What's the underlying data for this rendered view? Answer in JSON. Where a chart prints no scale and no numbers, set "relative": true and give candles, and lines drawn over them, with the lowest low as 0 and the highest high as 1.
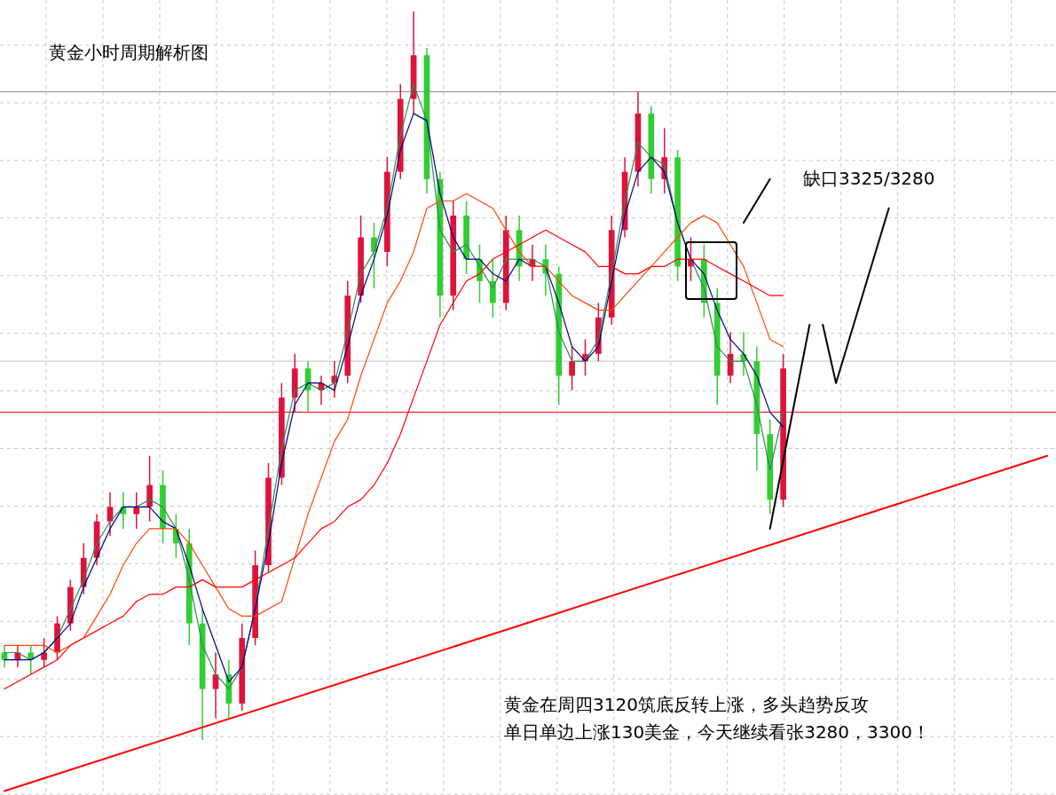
{
  "chart_data": {
    "type": "candlestick",
    "title": "黄金小时周期解析图",
    "relative": true,
    "grid": true,
    "categories": [
      null,
      null,
      null,
      null,
      null,
      null,
      null,
      null,
      null,
      null,
      null,
      null,
      null,
      null,
      null,
      null,
      null,
      null,
      null,
      null,
      null,
      null,
      null,
      null,
      null,
      null,
      null,
      null,
      null,
      null,
      null,
      null,
      null,
      null,
      null,
      null,
      null,
      null,
      null,
      null,
      null,
      null,
      null,
      null,
      null,
      null,
      null,
      null,
      null,
      null,
      null,
      null,
      null,
      null,
      null,
      null,
      null,
      null,
      null,
      null,
      null,
      null,
      null,
      null,
      null,
      null,
      null,
      null,
      null,
      null,
      null,
      null,
      null,
      null,
      null,
      null,
      null,
      null,
      null,
      null
    ],
    "ohlc": [
      [
        0.12,
        0.13,
        0.1,
        0.11
      ],
      [
        0.11,
        0.13,
        0.1,
        0.12
      ],
      [
        0.12,
        0.13,
        0.09,
        0.11
      ],
      [
        0.11,
        0.14,
        0.1,
        0.12
      ],
      [
        0.12,
        0.17,
        0.11,
        0.16
      ],
      [
        0.16,
        0.22,
        0.15,
        0.21
      ],
      [
        0.21,
        0.27,
        0.2,
        0.25
      ],
      [
        0.25,
        0.31,
        0.24,
        0.3
      ],
      [
        0.3,
        0.34,
        0.28,
        0.32
      ],
      [
        0.32,
        0.34,
        0.29,
        0.31
      ],
      [
        0.31,
        0.34,
        0.29,
        0.32
      ],
      [
        0.32,
        0.39,
        0.3,
        0.35
      ],
      [
        0.35,
        0.37,
        0.27,
        0.29
      ],
      [
        0.29,
        0.31,
        0.25,
        0.27
      ],
      [
        0.27,
        0.29,
        0.13,
        0.16
      ],
      [
        0.16,
        0.18,
        0.0,
        0.07
      ],
      [
        0.07,
        0.12,
        0.03,
        0.09
      ],
      [
        0.09,
        0.11,
        0.03,
        0.05
      ],
      [
        0.05,
        0.16,
        0.04,
        0.14
      ],
      [
        0.14,
        0.26,
        0.13,
        0.24
      ],
      [
        0.24,
        0.38,
        0.23,
        0.36
      ],
      [
        0.36,
        0.49,
        0.35,
        0.47
      ],
      [
        0.47,
        0.53,
        0.45,
        0.51
      ],
      [
        0.51,
        0.52,
        0.45,
        0.48
      ],
      [
        0.48,
        0.5,
        0.46,
        0.49
      ],
      [
        0.49,
        0.52,
        0.47,
        0.5
      ],
      [
        0.5,
        0.63,
        0.49,
        0.61
      ],
      [
        0.61,
        0.72,
        0.6,
        0.69
      ],
      [
        0.69,
        0.71,
        0.62,
        0.67
      ],
      [
        0.67,
        0.8,
        0.65,
        0.78
      ],
      [
        0.78,
        0.9,
        0.77,
        0.88
      ],
      [
        0.88,
        1.0,
        0.86,
        0.94
      ],
      [
        0.94,
        0.95,
        0.75,
        0.77
      ],
      [
        0.77,
        0.78,
        0.58,
        0.61
      ],
      [
        0.61,
        0.74,
        0.59,
        0.72
      ],
      [
        0.72,
        0.74,
        0.64,
        0.66
      ],
      [
        0.66,
        0.68,
        0.6,
        0.63
      ],
      [
        0.63,
        0.66,
        0.58,
        0.6
      ],
      [
        0.6,
        0.72,
        0.59,
        0.7
      ],
      [
        0.7,
        0.72,
        0.63,
        0.65
      ],
      [
        0.65,
        0.68,
        0.63,
        0.66
      ],
      [
        0.66,
        0.68,
        0.61,
        0.64
      ],
      [
        0.64,
        0.65,
        0.46,
        0.5
      ],
      [
        0.5,
        0.54,
        0.48,
        0.52
      ],
      [
        0.52,
        0.55,
        0.5,
        0.53
      ],
      [
        0.53,
        0.6,
        0.52,
        0.58
      ],
      [
        0.58,
        0.72,
        0.57,
        0.7
      ],
      [
        0.7,
        0.8,
        0.69,
        0.78
      ],
      [
        0.78,
        0.89,
        0.76,
        0.86
      ],
      [
        0.86,
        0.87,
        0.75,
        0.77
      ],
      [
        0.77,
        0.84,
        0.75,
        0.8
      ],
      [
        0.8,
        0.81,
        0.63,
        0.65
      ],
      [
        0.65,
        0.69,
        0.63,
        0.66
      ],
      [
        0.66,
        0.68,
        0.58,
        0.6
      ],
      [
        0.6,
        0.62,
        0.46,
        0.5
      ],
      [
        0.5,
        0.56,
        0.49,
        0.53
      ],
      [
        0.53,
        0.56,
        0.5,
        0.52
      ],
      [
        0.52,
        0.54,
        0.37,
        0.42
      ],
      [
        0.42,
        0.44,
        0.31,
        0.33
      ],
      [
        0.33,
        0.53,
        0.32,
        0.51
      ],
      null,
      null,
      null,
      null,
      null,
      null,
      null,
      null,
      null,
      null,
      null,
      null,
      null,
      null,
      null,
      null,
      null,
      null,
      null,
      null
    ],
    "colors": [
      "#32cd32",
      "#dc143c",
      "#32cd32",
      "#dc143c",
      "#dc143c",
      "#dc143c",
      "#dc143c",
      "#dc143c",
      "#dc143c",
      "#32cd32",
      "#dc143c",
      "#dc143c",
      "#32cd32",
      "#32cd32",
      "#32cd32",
      "#32cd32",
      "#dc143c",
      "#32cd32",
      "#dc143c",
      "#dc143c",
      "#dc143c",
      "#dc143c",
      "#dc143c",
      "#32cd32",
      "#dc143c",
      "#dc143c",
      "#dc143c",
      "#dc143c",
      "#32cd32",
      "#dc143c",
      "#dc143c",
      "#dc143c",
      "#32cd32",
      "#32cd32",
      "#dc143c",
      "#32cd32",
      "#32cd32",
      "#32cd32",
      "#dc143c",
      "#32cd32",
      "#dc143c",
      "#32cd32",
      "#32cd32",
      "#dc143c",
      "#dc143c",
      "#dc143c",
      "#dc143c",
      "#dc143c",
      "#dc143c",
      "#32cd32",
      "#dc143c",
      "#32cd32",
      "#dc143c",
      "#32cd32",
      "#32cd32",
      "#dc143c",
      "#32cd32",
      "#32cd32",
      "#32cd32",
      "#dc143c",
      null,
      null,
      null,
      null,
      null,
      null,
      null,
      null,
      null,
      null,
      null,
      null,
      null,
      null,
      null,
      null,
      null,
      null,
      null,
      null
    ],
    "series": [
      {
        "type": "line",
        "color": "#2e8b57",
        "values": [
          0.12,
          0.12,
          0.11,
          0.12,
          0.14,
          0.18,
          0.22,
          0.27,
          0.3,
          0.32,
          0.32,
          0.33,
          0.32,
          0.29,
          0.22,
          0.13,
          0.09,
          0.07,
          0.1,
          0.18,
          0.29,
          0.4,
          0.48,
          0.49,
          0.48,
          0.49,
          0.56,
          0.64,
          0.67,
          0.73,
          0.83,
          0.9,
          0.85,
          0.7,
          0.67,
          0.68,
          0.65,
          0.62,
          0.66,
          0.66,
          0.66,
          0.65,
          0.56,
          0.52,
          0.52,
          0.55,
          0.64,
          0.74,
          0.82,
          0.8,
          0.79,
          0.71,
          0.66,
          0.62,
          0.54,
          0.52,
          0.52,
          0.46,
          0.37,
          0.45,
          null,
          null,
          null,
          null,
          null,
          null,
          null,
          null,
          null,
          null,
          null,
          null,
          null,
          null,
          null,
          null,
          null,
          null,
          null,
          null
        ]
      },
      {
        "type": "line",
        "color": "#000080",
        "values": [
          0.11,
          0.11,
          0.11,
          0.12,
          0.14,
          0.16,
          0.21,
          0.25,
          0.29,
          0.32,
          0.32,
          0.32,
          0.3,
          0.29,
          0.24,
          0.18,
          0.13,
          0.08,
          0.1,
          0.18,
          0.27,
          0.38,
          0.46,
          0.49,
          0.49,
          0.48,
          0.54,
          0.61,
          0.66,
          0.72,
          0.81,
          0.86,
          0.85,
          0.75,
          0.69,
          0.66,
          0.66,
          0.64,
          0.63,
          0.66,
          0.65,
          0.65,
          0.6,
          0.54,
          0.52,
          0.54,
          0.63,
          0.72,
          0.78,
          0.8,
          0.78,
          0.71,
          0.66,
          0.64,
          0.59,
          0.55,
          0.53,
          0.5,
          0.45,
          0.43,
          null,
          null,
          null,
          null,
          null,
          null,
          null,
          null,
          null,
          null,
          null,
          null,
          null,
          null,
          null,
          null,
          null,
          null,
          null,
          null
        ]
      },
      {
        "type": "line",
        "color": "#ff4500",
        "values": [
          0.13,
          0.13,
          0.13,
          0.13,
          0.12,
          0.13,
          0.14,
          0.17,
          0.2,
          0.24,
          0.27,
          0.29,
          0.29,
          0.29,
          0.27,
          0.24,
          0.21,
          0.18,
          0.17,
          0.17,
          0.18,
          0.19,
          0.25,
          0.31,
          0.36,
          0.41,
          0.44,
          0.5,
          0.55,
          0.6,
          0.63,
          0.67,
          0.73,
          0.74,
          0.74,
          0.75,
          0.74,
          0.73,
          0.7,
          0.67,
          0.65,
          0.65,
          0.63,
          0.61,
          0.6,
          0.59,
          0.59,
          0.61,
          0.63,
          0.65,
          0.67,
          0.69,
          0.71,
          0.72,
          0.71,
          0.68,
          0.65,
          0.6,
          0.55,
          0.54,
          null,
          null,
          null,
          null,
          null,
          null,
          null,
          null,
          null,
          null,
          null,
          null,
          null,
          null,
          null,
          null,
          null,
          null,
          null,
          null
        ]
      },
      {
        "type": "line",
        "color": "#ff0000",
        "values": [
          0.07,
          0.08,
          0.09,
          0.1,
          0.11,
          0.13,
          0.14,
          0.15,
          0.16,
          0.17,
          0.19,
          0.2,
          0.2,
          0.21,
          0.21,
          0.22,
          0.21,
          0.21,
          0.21,
          0.22,
          0.23,
          0.24,
          0.25,
          0.27,
          0.29,
          0.3,
          0.32,
          0.33,
          0.35,
          0.38,
          0.42,
          0.47,
          0.52,
          0.57,
          0.6,
          0.63,
          0.64,
          0.66,
          0.67,
          0.68,
          0.69,
          0.7,
          0.69,
          0.68,
          0.67,
          0.65,
          0.65,
          0.64,
          0.64,
          0.65,
          0.65,
          0.66,
          0.66,
          0.66,
          0.65,
          0.64,
          0.63,
          0.62,
          0.61,
          0.61,
          null,
          null,
          null,
          null,
          null,
          null,
          null,
          null,
          null,
          null,
          null,
          null,
          null,
          null,
          null,
          null,
          null,
          null,
          null,
          null
        ]
      },
      {
        "type": "line",
        "color": "#ff0000",
        "values": [
          -0.07,
          null,
          null,
          null,
          null,
          null,
          null,
          null,
          null,
          null,
          null,
          null,
          null,
          null,
          null,
          null,
          null,
          null,
          null,
          null,
          null,
          null,
          null,
          null,
          null,
          null,
          null,
          null,
          null,
          null,
          null,
          null,
          null,
          null,
          null,
          null,
          null,
          null,
          null,
          null,
          null,
          null,
          null,
          null,
          null,
          null,
          null,
          null,
          null,
          null,
          null,
          null,
          null,
          null,
          null,
          null,
          null,
          null,
          null,
          null,
          null,
          null,
          null,
          null,
          null,
          null,
          null,
          null,
          null,
          null,
          null,
          null,
          null,
          null,
          null,
          null,
          null,
          null,
          null,
          0.39
        ]
      },
      {
        "type": "line",
        "color": "#000000",
        "values": [
          null,
          null,
          null,
          null,
          null,
          null,
          null,
          null,
          null,
          null,
          null,
          null,
          null,
          null,
          null,
          null,
          null,
          null,
          null,
          null,
          null,
          null,
          null,
          null,
          null,
          null,
          null,
          null,
          null,
          null,
          null,
          null,
          null,
          null,
          null,
          null,
          null,
          null,
          null,
          null,
          null,
          null,
          null,
          null,
          null,
          null,
          null,
          null,
          null,
          null,
          null,
          null,
          null,
          null,
          null,
          null,
          null,
          null,
          0.29,
          null,
          null,
          0.57,
          null,
          null,
          null,
          null,
          null,
          null,
          null,
          null,
          null,
          null,
          null,
          null,
          null,
          null,
          null,
          null,
          null,
          null
        ]
      },
      {
        "type": "line",
        "color": "#000000",
        "values": [
          null,
          null,
          null,
          null,
          null,
          null,
          null,
          null,
          null,
          null,
          null,
          null,
          null,
          null,
          null,
          null,
          null,
          null,
          null,
          null,
          null,
          null,
          null,
          null,
          null,
          null,
          null,
          null,
          null,
          null,
          null,
          null,
          null,
          null,
          null,
          null,
          null,
          null,
          null,
          null,
          null,
          null,
          null,
          null,
          null,
          null,
          null,
          null,
          null,
          null,
          null,
          null,
          null,
          null,
          null,
          null,
          null,
          null,
          null,
          null,
          null,
          null,
          0.57,
          0.49,
          null,
          null,
          null,
          0.73,
          null,
          null,
          null,
          null,
          null,
          null,
          null,
          null,
          null,
          null,
          null,
          null
        ]
      },
      {
        "type": "line",
        "color": "#000000",
        "values": [
          null,
          null,
          null,
          null,
          null,
          null,
          null,
          null,
          null,
          null,
          null,
          null,
          null,
          null,
          null,
          null,
          null,
          null,
          null,
          null,
          null,
          null,
          null,
          null,
          null,
          null,
          null,
          null,
          null,
          null,
          null,
          null,
          null,
          null,
          null,
          null,
          null,
          null,
          null,
          null,
          null,
          null,
          null,
          null,
          null,
          null,
          null,
          null,
          null,
          null,
          null,
          null,
          null,
          null,
          null,
          null,
          0.71,
          null,
          0.77,
          null,
          null,
          null,
          null,
          null,
          null,
          null,
          null,
          null,
          null,
          null,
          null,
          null,
          null,
          null,
          null,
          null,
          null,
          null,
          null,
          null
        ]
      }
    ],
    "ref_lines": [
      {
        "axis": "y",
        "value": 0.89,
        "color": "#808080"
      },
      {
        "axis": "y",
        "value": 0.52,
        "color": "#c0c0c0"
      },
      {
        "axis": "y",
        "value": 0.45,
        "color": "#ff0000"
      }
    ],
    "annotations": [
      "缺口3325/3280",
      "黄金在周四3120筑底反转上涨，多头趋势反攻",
      "单日单边上涨130美金，今天继续看张3280，3300！"
    ]
  }
}
